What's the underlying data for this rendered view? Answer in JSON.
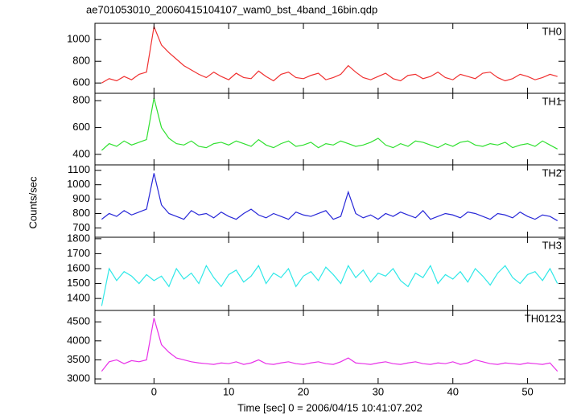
{
  "title": "ae701053010_20060415104107_wam0_bst_4band_16bin.qdp",
  "ylabel": "Counts/sec",
  "chart_data": [
    {
      "type": "line",
      "xlim": [
        -7.9,
        55
      ],
      "xticks": [
        0,
        10,
        20,
        30,
        40,
        50
      ],
      "ylim": [
        505,
        1150
      ],
      "yticks": [
        600,
        800,
        1000
      ],
      "x": [
        -7,
        -6,
        -5,
        -4,
        -3,
        -2,
        -1,
        0,
        1,
        2,
        3,
        4,
        5,
        6,
        7,
        8,
        9,
        10,
        11,
        12,
        13,
        14,
        15,
        16,
        17,
        18,
        19,
        20,
        21,
        22,
        23,
        24,
        25,
        26,
        27,
        28,
        29,
        30,
        31,
        32,
        33,
        34,
        35,
        36,
        37,
        38,
        39,
        40,
        41,
        42,
        43,
        44,
        45,
        46,
        47,
        48,
        49,
        50,
        51,
        52,
        53,
        54
      ],
      "series": [
        {
          "name": "TH0",
          "color": "#f03030",
          "values": [
            600,
            640,
            620,
            660,
            630,
            680,
            700,
            1120,
            950,
            880,
            820,
            760,
            720,
            680,
            650,
            700,
            660,
            630,
            690,
            650,
            640,
            710,
            660,
            620,
            680,
            700,
            650,
            640,
            670,
            690,
            630,
            650,
            680,
            760,
            700,
            650,
            630,
            660,
            690,
            640,
            620,
            670,
            680,
            640,
            660,
            700,
            650,
            630,
            680,
            660,
            640,
            690,
            700,
            650,
            620,
            640,
            680,
            660,
            630,
            650,
            680,
            660
          ]
        }
      ]
    },
    {
      "type": "line",
      "xlim": [
        -7.9,
        55
      ],
      "xticks": [
        0,
        10,
        20,
        30,
        40,
        50
      ],
      "ylim": [
        322,
        855
      ],
      "yticks": [
        400,
        600,
        800
      ],
      "x": [
        -7,
        -6,
        -5,
        -4,
        -3,
        -2,
        -1,
        0,
        1,
        2,
        3,
        4,
        5,
        6,
        7,
        8,
        9,
        10,
        11,
        12,
        13,
        14,
        15,
        16,
        17,
        18,
        19,
        20,
        21,
        22,
        23,
        24,
        25,
        26,
        27,
        28,
        29,
        30,
        31,
        32,
        33,
        34,
        35,
        36,
        37,
        38,
        39,
        40,
        41,
        42,
        43,
        44,
        45,
        46,
        47,
        48,
        49,
        50,
        51,
        52,
        53,
        54
      ],
      "series": [
        {
          "name": "TH1",
          "color": "#30e030",
          "values": [
            430,
            480,
            460,
            500,
            470,
            490,
            510,
            820,
            600,
            520,
            480,
            470,
            500,
            460,
            450,
            480,
            490,
            470,
            500,
            480,
            460,
            510,
            470,
            450,
            480,
            500,
            460,
            470,
            490,
            450,
            480,
            470,
            500,
            480,
            460,
            470,
            490,
            520,
            470,
            450,
            480,
            460,
            500,
            490,
            470,
            450,
            480,
            460,
            490,
            500,
            470,
            460,
            480,
            470,
            490,
            450,
            470,
            480,
            460,
            500,
            470,
            440
          ]
        }
      ]
    },
    {
      "type": "line",
      "xlim": [
        -7.9,
        55
      ],
      "xticks": [
        0,
        10,
        20,
        30,
        40,
        50
      ],
      "ylim": [
        635,
        1138
      ],
      "yticks": [
        700,
        800,
        900,
        1000,
        1100
      ],
      "x": [
        -7,
        -6,
        -5,
        -4,
        -3,
        -2,
        -1,
        0,
        1,
        2,
        3,
        4,
        5,
        6,
        7,
        8,
        9,
        10,
        11,
        12,
        13,
        14,
        15,
        16,
        17,
        18,
        19,
        20,
        21,
        22,
        23,
        24,
        25,
        26,
        27,
        28,
        29,
        30,
        31,
        32,
        33,
        34,
        35,
        36,
        37,
        38,
        39,
        40,
        41,
        42,
        43,
        44,
        45,
        46,
        47,
        48,
        49,
        50,
        51,
        52,
        53,
        54
      ],
      "series": [
        {
          "name": "TH2",
          "color": "#2828d8",
          "values": [
            760,
            800,
            780,
            820,
            790,
            810,
            830,
            1080,
            860,
            800,
            780,
            760,
            820,
            790,
            800,
            770,
            810,
            780,
            760,
            800,
            830,
            790,
            770,
            800,
            780,
            760,
            810,
            790,
            780,
            800,
            820,
            760,
            780,
            950,
            800,
            770,
            790,
            760,
            800,
            780,
            810,
            790,
            770,
            820,
            760,
            780,
            800,
            790,
            770,
            810,
            800,
            780,
            760,
            800,
            790,
            770,
            810,
            780,
            760,
            790,
            780,
            750
          ]
        }
      ]
    },
    {
      "type": "line",
      "xlim": [
        -7.9,
        55
      ],
      "xticks": [
        0,
        10,
        20,
        30,
        40,
        50
      ],
      "ylim": [
        1320,
        1810
      ],
      "yticks": [
        1400,
        1500,
        1600,
        1700,
        1800
      ],
      "x": [
        -7,
        -6,
        -5,
        -4,
        -3,
        -2,
        -1,
        0,
        1,
        2,
        3,
        4,
        5,
        6,
        7,
        8,
        9,
        10,
        11,
        12,
        13,
        14,
        15,
        16,
        17,
        18,
        19,
        20,
        21,
        22,
        23,
        24,
        25,
        26,
        27,
        28,
        29,
        30,
        31,
        32,
        33,
        34,
        35,
        36,
        37,
        38,
        39,
        40,
        41,
        42,
        43,
        44,
        45,
        46,
        47,
        48,
        49,
        50,
        51,
        52,
        53,
        54
      ],
      "series": [
        {
          "name": "TH3",
          "color": "#30e8e8",
          "values": [
            1350,
            1600,
            1520,
            1580,
            1550,
            1500,
            1560,
            1520,
            1550,
            1480,
            1600,
            1530,
            1570,
            1500,
            1620,
            1540,
            1480,
            1560,
            1590,
            1510,
            1550,
            1620,
            1500,
            1570,
            1540,
            1600,
            1480,
            1550,
            1580,
            1520,
            1610,
            1560,
            1500,
            1620,
            1540,
            1590,
            1510,
            1570,
            1550,
            1600,
            1520,
            1480,
            1570,
            1540,
            1620,
            1500,
            1560,
            1530,
            1580,
            1510,
            1600,
            1550,
            1490,
            1570,
            1620,
            1540,
            1500,
            1560,
            1580,
            1520,
            1600,
            1500
          ]
        }
      ]
    },
    {
      "type": "line",
      "xlim": [
        -7.9,
        55
      ],
      "xticks": [
        0,
        10,
        20,
        30,
        40,
        50
      ],
      "ylim": [
        2875,
        4800
      ],
      "yticks": [
        3000,
        3500,
        4000,
        4500
      ],
      "xlabel": "Time [sec] 0 = 2006/04/15 10:41:07.202",
      "x": [
        -7,
        -6,
        -5,
        -4,
        -3,
        -2,
        -1,
        0,
        1,
        2,
        3,
        4,
        5,
        6,
        7,
        8,
        9,
        10,
        11,
        12,
        13,
        14,
        15,
        16,
        17,
        18,
        19,
        20,
        21,
        22,
        23,
        24,
        25,
        26,
        27,
        28,
        29,
        30,
        31,
        32,
        33,
        34,
        35,
        36,
        37,
        38,
        39,
        40,
        41,
        42,
        43,
        44,
        45,
        46,
        47,
        48,
        49,
        50,
        51,
        52,
        53,
        54
      ],
      "series": [
        {
          "name": "TH0123",
          "color": "#e830e8",
          "values": [
            3200,
            3450,
            3500,
            3400,
            3480,
            3450,
            3500,
            4600,
            3900,
            3700,
            3550,
            3500,
            3450,
            3420,
            3400,
            3380,
            3420,
            3400,
            3450,
            3380,
            3420,
            3500,
            3400,
            3380,
            3420,
            3450,
            3400,
            3380,
            3420,
            3450,
            3400,
            3380,
            3450,
            3550,
            3420,
            3400,
            3380,
            3420,
            3450,
            3400,
            3380,
            3420,
            3450,
            3400,
            3380,
            3420,
            3400,
            3450,
            3380,
            3420,
            3500,
            3450,
            3400,
            3380,
            3420,
            3400,
            3380,
            3420,
            3400,
            3380,
            3420,
            3200
          ]
        }
      ]
    }
  ]
}
